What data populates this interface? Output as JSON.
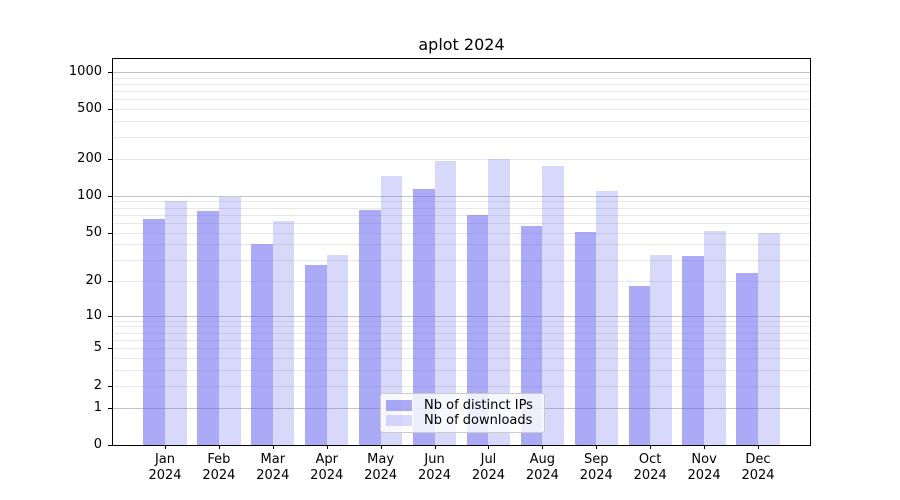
{
  "chart_data": {
    "type": "bar",
    "title": "aplot 2024",
    "categories": [
      "Jan",
      "Feb",
      "Mar",
      "Apr",
      "May",
      "Jun",
      "Jul",
      "Aug",
      "Sep",
      "Oct",
      "Nov",
      "Dec"
    ],
    "category_year": "2024",
    "series": [
      {
        "name": "Nb of distinct IPs",
        "values": [
          65,
          75,
          40,
          27,
          77,
          114,
          70,
          57,
          51,
          18,
          32,
          23
        ]
      },
      {
        "name": "Nb of downloads",
        "values": [
          90,
          97,
          62,
          33,
          144,
          193,
          200,
          175,
          109,
          33,
          52,
          50
        ]
      }
    ],
    "yscale": "log1p",
    "yticks": [
      0,
      1,
      2,
      5,
      10,
      20,
      50,
      100,
      200,
      500,
      1000
    ],
    "ylim": [
      0,
      1270
    ],
    "xlabel": "",
    "ylabel": "",
    "grid": "major-and-minor",
    "legend_position": "lower center"
  },
  "colors": {
    "bar_base": "#6464ee",
    "series_fills": [
      "rgba(100,100,238,0.55)",
      "rgba(100,100,238,0.25)"
    ],
    "grid_major": "#c3c3c3",
    "grid_minor": "#e8e8e8",
    "axis": "#000000",
    "legend_border": "#cccccc"
  }
}
